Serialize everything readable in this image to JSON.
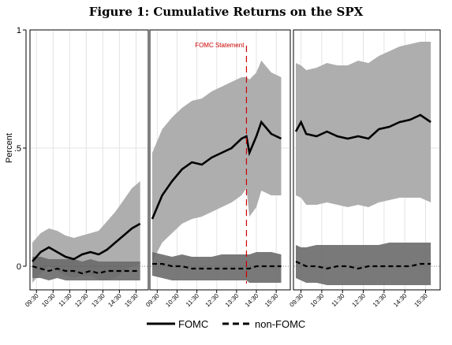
{
  "figure_title": "Figure 1: Cumulative Returns on the SPX",
  "chart_data": {
    "type": "line",
    "title": "Figure 1: Cumulative Returns on the SPX",
    "ylabel": "Percent",
    "ylim": [
      -0.1,
      1.0
    ],
    "y_ticks": [
      0,
      0.5,
      1
    ],
    "y_tick_labels": [
      "0",
      ".5",
      "1"
    ],
    "x_tick_labels": [
      "09:30",
      "10:30",
      "11:30",
      "12:30",
      "13:30",
      "14:30",
      "15:30"
    ],
    "grid": true,
    "legend": {
      "placement": "bottom",
      "entries": [
        {
          "label": "FOMC",
          "style": "solid",
          "color": "#000000"
        },
        {
          "label": "non-FOMC",
          "style": "dashed",
          "color": "#000000"
        }
      ]
    },
    "annotation": {
      "text": "FOMC Statement",
      "panel": 2,
      "x_hours": 4.75,
      "color": "#cc0000"
    },
    "colors": {
      "fomc_band": "#aaaaaa",
      "nonfomc_band": "#6a6a6a",
      "statement_line": "#cc0000"
    },
    "panels": [
      {
        "name": "panel-1",
        "x_hours": [
          0,
          0.5,
          1,
          1.5,
          2,
          2.5,
          3,
          3.5,
          4,
          4.5,
          5,
          5.5,
          6,
          6.5
        ],
        "fomc": [
          0.02,
          0.06,
          0.08,
          0.06,
          0.04,
          0.03,
          0.05,
          0.06,
          0.05,
          0.07,
          0.1,
          0.13,
          0.16,
          0.18
        ],
        "fomc_band": [
          [
            -0.07,
            0.1
          ],
          [
            -0.03,
            0.14
          ],
          [
            0.0,
            0.16
          ],
          [
            -0.02,
            0.15
          ],
          [
            -0.04,
            0.13
          ],
          [
            -0.05,
            0.12
          ],
          [
            -0.04,
            0.13
          ],
          [
            -0.04,
            0.14
          ],
          [
            -0.06,
            0.15
          ],
          [
            -0.06,
            0.19
          ],
          [
            -0.05,
            0.23
          ],
          [
            -0.02,
            0.28
          ],
          [
            0.0,
            0.33
          ],
          [
            0.01,
            0.36
          ]
        ],
        "non_fomc": [
          0.0,
          -0.01,
          -0.02,
          -0.01,
          -0.02,
          -0.02,
          -0.03,
          -0.02,
          -0.03,
          -0.02,
          -0.02,
          -0.02,
          -0.02,
          -0.02
        ],
        "non_fomc_band": [
          [
            -0.05,
            0.04
          ],
          [
            -0.05,
            0.04
          ],
          [
            -0.06,
            0.03
          ],
          [
            -0.05,
            0.03
          ],
          [
            -0.06,
            0.03
          ],
          [
            -0.06,
            0.03
          ],
          [
            -0.06,
            0.02
          ],
          [
            -0.06,
            0.03
          ],
          [
            -0.06,
            0.02
          ],
          [
            -0.06,
            0.02
          ],
          [
            -0.06,
            0.02
          ],
          [
            -0.06,
            0.02
          ],
          [
            -0.06,
            0.02
          ],
          [
            -0.06,
            0.02
          ]
        ]
      },
      {
        "name": "panel-2",
        "x_hours": [
          0,
          0.5,
          1,
          1.5,
          2,
          2.5,
          3,
          3.5,
          4,
          4.5,
          4.75,
          4.9,
          5.25,
          5.5,
          6,
          6.5
        ],
        "fomc": [
          0.2,
          0.3,
          0.36,
          0.41,
          0.44,
          0.43,
          0.46,
          0.48,
          0.5,
          0.54,
          0.55,
          0.48,
          0.55,
          0.61,
          0.56,
          0.54
        ],
        "fomc_band": [
          [
            0.02,
            0.48
          ],
          [
            0.1,
            0.58
          ],
          [
            0.14,
            0.63
          ],
          [
            0.18,
            0.67
          ],
          [
            0.2,
            0.7
          ],
          [
            0.21,
            0.71
          ],
          [
            0.23,
            0.74
          ],
          [
            0.25,
            0.76
          ],
          [
            0.27,
            0.78
          ],
          [
            0.3,
            0.8
          ],
          [
            0.33,
            0.8
          ],
          [
            0.21,
            0.79
          ],
          [
            0.25,
            0.82
          ],
          [
            0.32,
            0.87
          ],
          [
            0.3,
            0.82
          ],
          [
            0.3,
            0.8
          ]
        ],
        "non_fomc": [
          0.01,
          0.01,
          0.0,
          0.0,
          -0.01,
          -0.01,
          -0.01,
          -0.01,
          -0.01,
          -0.01,
          -0.01,
          -0.01,
          0.0,
          0.0,
          0.0,
          0.0
        ],
        "non_fomc_band": [
          [
            -0.04,
            0.06
          ],
          [
            -0.05,
            0.05
          ],
          [
            -0.06,
            0.04
          ],
          [
            -0.06,
            0.05
          ],
          [
            -0.06,
            0.04
          ],
          [
            -0.06,
            0.04
          ],
          [
            -0.06,
            0.04
          ],
          [
            -0.06,
            0.05
          ],
          [
            -0.06,
            0.05
          ],
          [
            -0.06,
            0.05
          ],
          [
            -0.06,
            0.05
          ],
          [
            -0.07,
            0.05
          ],
          [
            -0.07,
            0.06
          ],
          [
            -0.07,
            0.06
          ],
          [
            -0.07,
            0.06
          ],
          [
            -0.07,
            0.05
          ]
        ]
      },
      {
        "name": "panel-3",
        "x_hours": [
          0,
          0.25,
          0.5,
          1,
          1.5,
          2,
          2.5,
          3,
          3.5,
          4,
          4.5,
          5,
          5.5,
          6,
          6.5
        ],
        "fomc": [
          0.57,
          0.61,
          0.56,
          0.55,
          0.57,
          0.55,
          0.54,
          0.55,
          0.54,
          0.58,
          0.59,
          0.61,
          0.62,
          0.64,
          0.61
        ],
        "fomc_band": [
          [
            0.3,
            0.86
          ],
          [
            0.29,
            0.85
          ],
          [
            0.26,
            0.83
          ],
          [
            0.26,
            0.84
          ],
          [
            0.27,
            0.86
          ],
          [
            0.26,
            0.85
          ],
          [
            0.25,
            0.85
          ],
          [
            0.26,
            0.87
          ],
          [
            0.25,
            0.86
          ],
          [
            0.27,
            0.89
          ],
          [
            0.28,
            0.91
          ],
          [
            0.29,
            0.93
          ],
          [
            0.29,
            0.94
          ],
          [
            0.29,
            0.95
          ],
          [
            0.27,
            0.95
          ]
        ],
        "non_fomc": [
          0.02,
          0.01,
          0.0,
          0.0,
          -0.01,
          0.0,
          0.0,
          -0.01,
          0.0,
          0.0,
          0.0,
          0.0,
          0.0,
          0.01,
          0.01
        ],
        "non_fomc_band": [
          [
            -0.05,
            0.09
          ],
          [
            -0.06,
            0.08
          ],
          [
            -0.07,
            0.08
          ],
          [
            -0.07,
            0.09
          ],
          [
            -0.08,
            0.09
          ],
          [
            -0.08,
            0.09
          ],
          [
            -0.08,
            0.09
          ],
          [
            -0.08,
            0.09
          ],
          [
            -0.08,
            0.09
          ],
          [
            -0.08,
            0.09
          ],
          [
            -0.08,
            0.1
          ],
          [
            -0.08,
            0.1
          ],
          [
            -0.08,
            0.1
          ],
          [
            -0.08,
            0.1
          ],
          [
            -0.08,
            0.1
          ]
        ]
      }
    ]
  }
}
